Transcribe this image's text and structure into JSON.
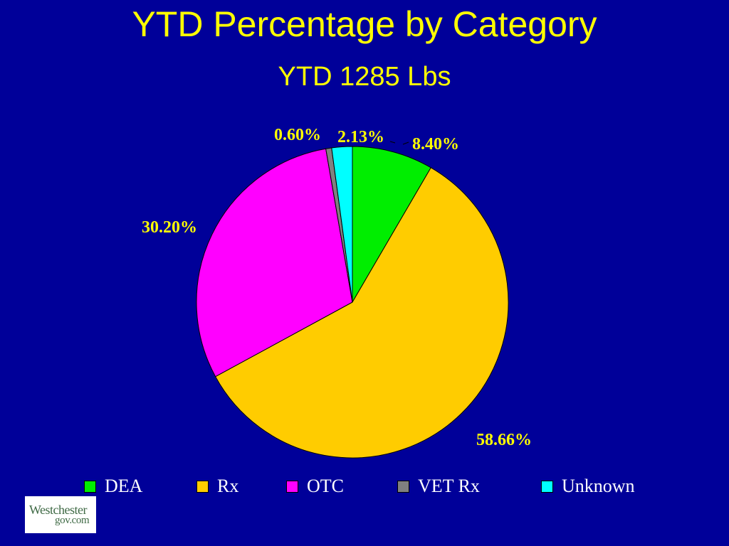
{
  "title": "YTD Percentage by Category",
  "subtitle": "YTD 1285 Lbs",
  "chart_data": {
    "type": "pie",
    "title": "YTD Percentage by Category",
    "subtitle": "YTD 1285 Lbs",
    "slices": [
      {
        "name": "DEA",
        "value": 8.4,
        "label": "8.40%",
        "color": "#00ee00"
      },
      {
        "name": "Rx",
        "value": 58.66,
        "label": "58.66%",
        "color": "#ffcc00"
      },
      {
        "name": "OTC",
        "value": 30.2,
        "label": "30.20%",
        "color": "#ff00ff"
      },
      {
        "name": "VET Rx",
        "value": 0.6,
        "label": "0.60%",
        "color": "#808080"
      },
      {
        "name": "Unknown",
        "value": 2.13,
        "label": "2.13%",
        "color": "#00ffff"
      }
    ],
    "legend": {
      "placement": "bottom",
      "entries": [
        "DEA",
        "Rx",
        "OTC",
        "VET Rx",
        "Unknown"
      ]
    },
    "label_color": "#ffff00"
  },
  "logo": {
    "line1": "Westchester",
    "line2": "gov.com"
  }
}
